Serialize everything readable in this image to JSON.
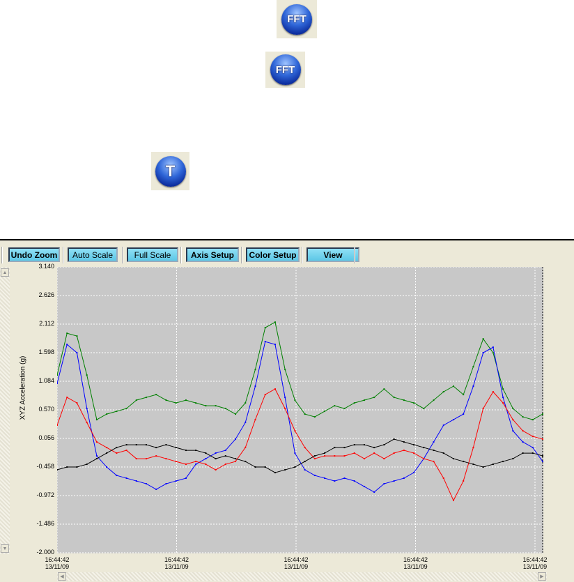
{
  "icons": [
    {
      "name": "fft-icon",
      "label": "FFT"
    },
    {
      "name": "fft-icon",
      "label": "FFT"
    },
    {
      "name": "time-icon",
      "label": "T"
    }
  ],
  "toolbar": {
    "undo_zoom": "Undo Zoom",
    "auto_scale": "Auto Scale",
    "full_scale": "Full Scale",
    "axis_setup": "Axis Setup",
    "color_setup": "Color Setup",
    "view": "View"
  },
  "chart_data": {
    "type": "line",
    "ylabel": "XYZ Acceleration (g)",
    "ylim": [
      -2.0,
      3.14
    ],
    "yticks": [
      "3.140",
      "2.626",
      "2.112",
      "1.598",
      "1.084",
      "0.570",
      "0.056",
      "-0.458",
      "-0.972",
      "-1.486",
      "-2.000"
    ],
    "xticks": [
      {
        "time": "16:44:42",
        "date": "13/11/09"
      },
      {
        "time": "16:44:42",
        "date": "13/11/09"
      },
      {
        "time": "16:44:42",
        "date": "13/11/09"
      },
      {
        "time": "16:44:42",
        "date": "13/11/09"
      },
      {
        "time": "16:44:42",
        "date": "13/11/09"
      }
    ],
    "grid": true,
    "background": "#c8c8c8",
    "series": [
      {
        "name": "green",
        "color": "#008000",
        "values": [
          1.2,
          1.95,
          1.9,
          1.2,
          0.4,
          0.5,
          0.55,
          0.6,
          0.75,
          0.8,
          0.85,
          0.75,
          0.7,
          0.75,
          0.7,
          0.65,
          0.65,
          0.6,
          0.5,
          0.7,
          1.3,
          2.05,
          2.15,
          1.3,
          0.75,
          0.5,
          0.45,
          0.55,
          0.65,
          0.6,
          0.7,
          0.75,
          0.8,
          0.95,
          0.8,
          0.75,
          0.7,
          0.6,
          0.75,
          0.9,
          1.0,
          0.85,
          1.35,
          1.85,
          1.6,
          0.95,
          0.6,
          0.45,
          0.4,
          0.5
        ]
      },
      {
        "name": "blue",
        "color": "#0000ff",
        "values": [
          1.05,
          1.75,
          1.6,
          0.6,
          -0.25,
          -0.45,
          -0.6,
          -0.65,
          -0.7,
          -0.75,
          -0.85,
          -0.75,
          -0.7,
          -0.65,
          -0.4,
          -0.3,
          -0.2,
          -0.15,
          0.05,
          0.35,
          1.0,
          1.8,
          1.75,
          0.8,
          -0.2,
          -0.5,
          -0.6,
          -0.65,
          -0.7,
          -0.65,
          -0.7,
          -0.8,
          -0.9,
          -0.75,
          -0.7,
          -0.65,
          -0.55,
          -0.3,
          0.0,
          0.3,
          0.4,
          0.5,
          1.0,
          1.6,
          1.7,
          0.8,
          0.2,
          0.0,
          -0.1,
          -0.35
        ]
      },
      {
        "name": "red",
        "color": "#ff0000",
        "values": [
          0.3,
          0.8,
          0.7,
          0.35,
          0.0,
          -0.1,
          -0.2,
          -0.15,
          -0.3,
          -0.3,
          -0.25,
          -0.3,
          -0.35,
          -0.4,
          -0.35,
          -0.4,
          -0.5,
          -0.4,
          -0.35,
          -0.1,
          0.4,
          0.85,
          0.95,
          0.6,
          0.2,
          -0.1,
          -0.3,
          -0.25,
          -0.25,
          -0.25,
          -0.2,
          -0.3,
          -0.2,
          -0.3,
          -0.2,
          -0.15,
          -0.2,
          -0.3,
          -0.35,
          -0.65,
          -1.05,
          -0.7,
          -0.1,
          0.6,
          0.9,
          0.7,
          0.4,
          0.2,
          0.1,
          0.05
        ]
      },
      {
        "name": "black",
        "color": "#000000",
        "values": [
          -0.5,
          -0.45,
          -0.45,
          -0.4,
          -0.3,
          -0.2,
          -0.1,
          -0.05,
          -0.05,
          -0.05,
          -0.1,
          -0.05,
          -0.1,
          -0.15,
          -0.15,
          -0.2,
          -0.3,
          -0.25,
          -0.3,
          -0.35,
          -0.45,
          -0.45,
          -0.55,
          -0.5,
          -0.45,
          -0.35,
          -0.25,
          -0.2,
          -0.1,
          -0.1,
          -0.05,
          -0.05,
          -0.1,
          -0.05,
          0.05,
          0.0,
          -0.05,
          -0.1,
          -0.15,
          -0.2,
          -0.3,
          -0.35,
          -0.4,
          -0.45,
          -0.4,
          -0.35,
          -0.3,
          -0.2,
          -0.2,
          -0.25
        ]
      }
    ]
  }
}
